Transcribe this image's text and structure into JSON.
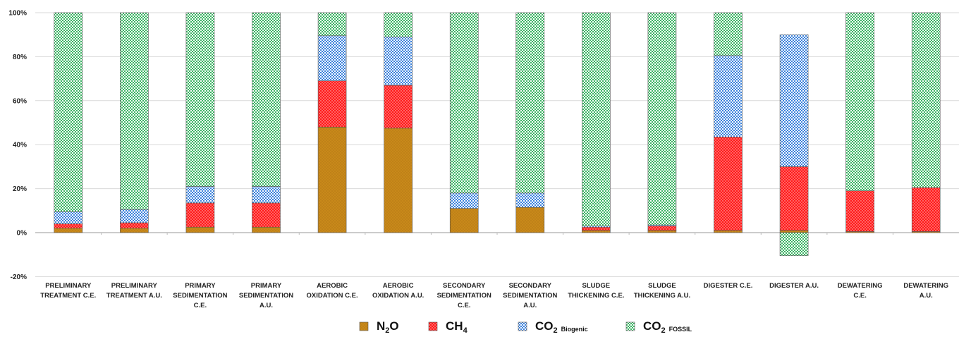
{
  "chart_data": {
    "type": "bar",
    "stacked": true,
    "ylim": [
      -20,
      100
    ],
    "yticks": [
      "-20%",
      "0%",
      "20%",
      "40%",
      "60%",
      "80%",
      "100%"
    ],
    "grid": true,
    "legend_position": "bottom",
    "categories": [
      [
        "PRELIMINARY",
        "TREATMENT C.E."
      ],
      [
        "PRELIMINARY",
        "TREATMENT A.U."
      ],
      [
        "PRIMARY",
        "SEDIMENTATION",
        "C.E."
      ],
      [
        "PRIMARY",
        "SEDIMENTATION",
        "A.U."
      ],
      [
        "AEROBIC",
        "OXIDATION C.E."
      ],
      [
        "AEROBIC",
        "OXIDATION A.U."
      ],
      [
        "SECONDARY",
        "SEDIMENTATION",
        "C.E."
      ],
      [
        "SECONDARY",
        "SEDIMENTATION",
        "A.U."
      ],
      [
        "SLUDGE",
        "THICKENING C.E."
      ],
      [
        "SLUDGE",
        "THICKENING A.U."
      ],
      [
        "DIGESTER C.E."
      ],
      [
        "DIGESTER A.U."
      ],
      [
        "DEWATERING",
        "C.E."
      ],
      [
        "DEWATERING",
        "A.U."
      ]
    ],
    "series": [
      {
        "name": "N2O",
        "legend_main": "N",
        "legend_sub": "2",
        "legend_rest": "O",
        "legend_small": "",
        "color": "#c8891a",
        "pattern": "dots-gold",
        "values": [
          2,
          2,
          2.5,
          2.5,
          48,
          47.5,
          11,
          11.5,
          1,
          1,
          1,
          1,
          0.5,
          0.5
        ]
      },
      {
        "name": "CH4",
        "legend_main": "CH",
        "legend_sub": "4",
        "legend_rest": "",
        "legend_small": "",
        "color": "#ff1a1a",
        "pattern": "dots-red",
        "values": [
          2,
          2.5,
          11,
          11,
          21,
          19.5,
          0,
          0,
          1.5,
          2,
          42.5,
          29,
          18.5,
          20
        ]
      },
      {
        "name": "CO2 Biogenic",
        "legend_main": "CO",
        "legend_sub": "2",
        "legend_rest": "",
        "legend_small": "Biogenic",
        "color": "#3c82dc",
        "pattern": "check-blue",
        "values": [
          5.5,
          6,
          7.5,
          7.5,
          20.5,
          22,
          7,
          6.5,
          0.5,
          0.5,
          37,
          60,
          0,
          0
        ]
      },
      {
        "name": "CO2 FOSSIL",
        "legend_main": "CO",
        "legend_sub": "2",
        "legend_rest": "",
        "legend_small": "FOSSIL",
        "color": "#3cb464",
        "pattern": "check-green",
        "values": [
          90.5,
          89.5,
          79,
          79,
          10.5,
          11,
          82,
          82,
          97,
          96.5,
          19.5,
          -10.5,
          81,
          79.5
        ]
      }
    ]
  }
}
